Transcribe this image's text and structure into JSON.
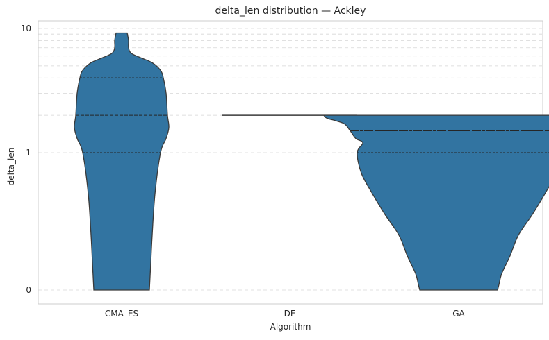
{
  "chart_data": {
    "type": "violin",
    "title": "delta_len distribution — Ackley",
    "xlabel": "Algorithm",
    "ylabel": "delta_len",
    "yscale": "symlog",
    "ylim": [
      0,
      10
    ],
    "yticks": [
      {
        "value": 0,
        "label": "0"
      },
      {
        "value": 1,
        "label": "1"
      },
      {
        "value": 10,
        "label": "10"
      }
    ],
    "grid": true,
    "categories": [
      "CMA_ES",
      "DE",
      "GA"
    ],
    "violins": [
      {
        "category": "CMA_ES",
        "range": [
          0,
          9.2
        ],
        "quartiles": [
          1.0,
          2.0,
          4.0
        ],
        "profile": [
          [
            9.2,
            0.04
          ],
          [
            8.0,
            0.05
          ],
          [
            7.0,
            0.05
          ],
          [
            6.3,
            0.07
          ],
          [
            5.8,
            0.14
          ],
          [
            5.3,
            0.22
          ],
          [
            4.6,
            0.28
          ],
          [
            4.0,
            0.3
          ],
          [
            3.0,
            0.32
          ],
          [
            2.0,
            0.33
          ],
          [
            1.6,
            0.34
          ],
          [
            1.3,
            0.32
          ],
          [
            1.0,
            0.28
          ],
          [
            0.7,
            0.24
          ],
          [
            0.4,
            0.22
          ],
          [
            0.2,
            0.21
          ],
          [
            0.0,
            0.2
          ]
        ]
      },
      {
        "category": "DE",
        "range": [
          2.0,
          2.0
        ],
        "quartiles": [
          2.0,
          2.0,
          2.0
        ],
        "profile": []
      },
      {
        "category": "GA",
        "range": [
          0,
          2.0
        ],
        "quartiles": [
          1.0,
          1.5,
          1.5
        ],
        "profile": [
          [
            2.0,
            0.97
          ],
          [
            1.9,
            0.95
          ],
          [
            1.8,
            0.88
          ],
          [
            1.7,
            0.82
          ],
          [
            1.5,
            0.78
          ],
          [
            1.3,
            0.74
          ],
          [
            1.2,
            0.69
          ],
          [
            1.0,
            0.73
          ],
          [
            0.85,
            0.7
          ],
          [
            0.7,
            0.62
          ],
          [
            0.55,
            0.53
          ],
          [
            0.4,
            0.43
          ],
          [
            0.25,
            0.37
          ],
          [
            0.12,
            0.31
          ],
          [
            0.04,
            0.29
          ],
          [
            0.0,
            0.28
          ]
        ]
      }
    ]
  }
}
